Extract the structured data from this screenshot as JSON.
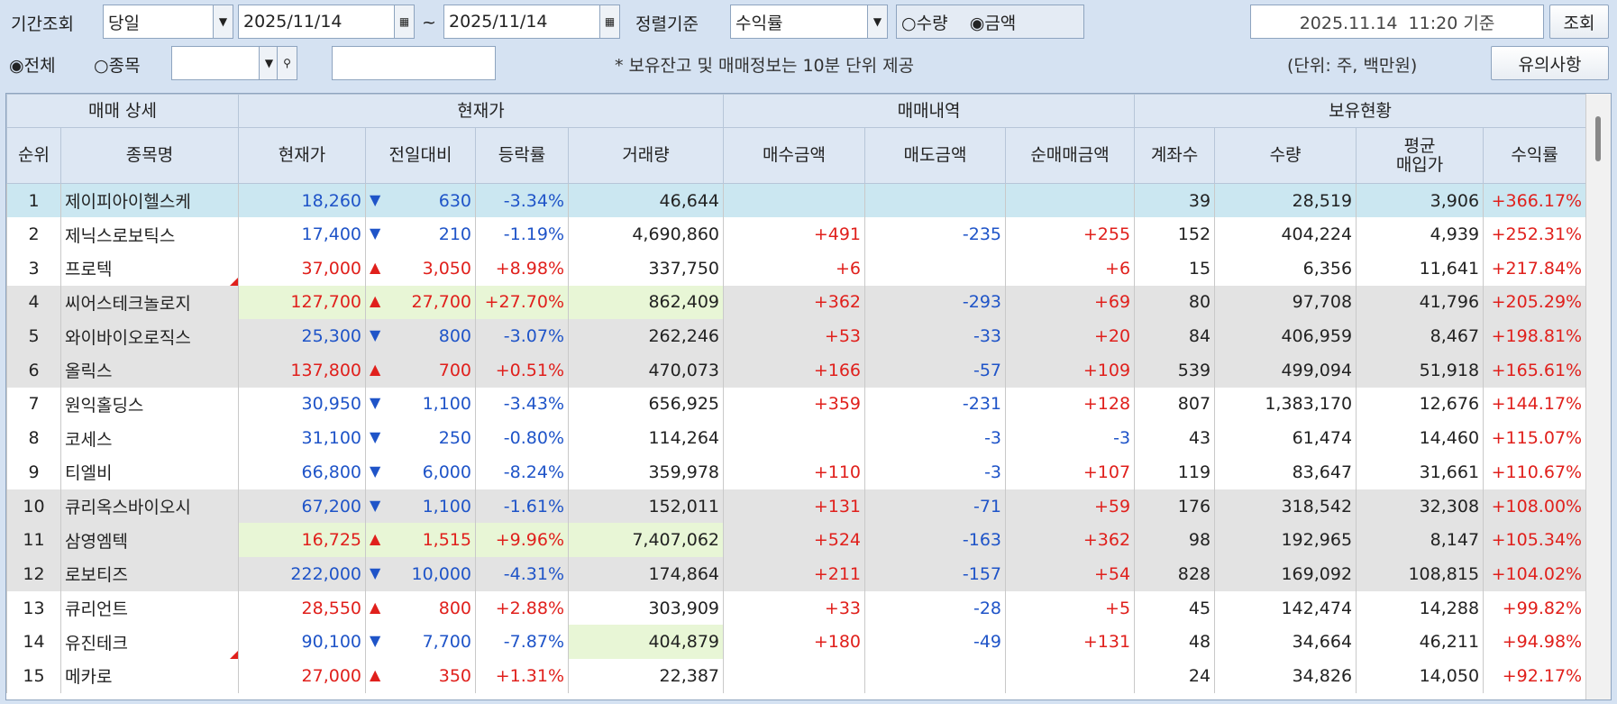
{
  "toolbar": {
    "period_label": "기간조회",
    "period": "당일",
    "date_from": "2025/11/14",
    "tilde": "~",
    "date_to": "2025/11/14",
    "sort_label": "정렬기준",
    "sort": "수익률",
    "radio_qty": "수량",
    "radio_amount": "금액",
    "timestamp": "2025.11.14  11:20 기준",
    "query_button": "조회",
    "radio_all": "전체",
    "radio_stock": "종목",
    "note": "* 보유잔고 및 매매정보는 10분 단위 제공",
    "unit": "(단위: 주, 백만원)",
    "notice_button": "유의사항"
  },
  "table": {
    "groups": [
      "매매 상세",
      "현재가",
      "매매내역",
      "보유현황"
    ],
    "columns": [
      "순위",
      "종목명",
      "현재가",
      "전일대비",
      "등락률",
      "거래량",
      "매수금액",
      "매도금액",
      "순매매금액",
      "계좌수",
      "수량",
      "평균\n매입가",
      "수익률"
    ],
    "rows": [
      [
        1,
        "제이피아이헬스케",
        "18,260",
        "630",
        "-3.34%",
        "46,644",
        null,
        null,
        null,
        "39",
        "28,519",
        "3,906",
        "+366.17%"
      ],
      [
        2,
        "제닉스로보틱스",
        "17,400",
        "210",
        "-1.19%",
        "4,690,860",
        "+491",
        "-235",
        "+255",
        "152",
        "404,224",
        "4,939",
        "+252.31%"
      ],
      [
        3,
        "프로텍",
        "37,000",
        "3,050",
        "+8.98%",
        "337,750",
        "+6",
        null,
        "+6",
        "15",
        "6,356",
        "11,641",
        "+217.84%"
      ],
      [
        4,
        "씨어스테크놀로지",
        "127,700",
        "27,700",
        "+27.70%",
        "862,409",
        "+362",
        "-293",
        "+69",
        "80",
        "97,708",
        "41,796",
        "+205.29%"
      ],
      [
        5,
        "와이바이오로직스",
        "25,300",
        "800",
        "-3.07%",
        "262,246",
        "+53",
        "-33",
        "+20",
        "84",
        "406,959",
        "8,467",
        "+198.81%"
      ],
      [
        6,
        "올릭스",
        "137,800",
        "700",
        "+0.51%",
        "470,073",
        "+166",
        "-57",
        "+109",
        "539",
        "499,094",
        "51,918",
        "+165.61%"
      ],
      [
        7,
        "원익홀딩스",
        "30,950",
        "1,100",
        "-3.43%",
        "656,925",
        "+359",
        "-231",
        "+128",
        "807",
        "1,383,170",
        "12,676",
        "+144.17%"
      ],
      [
        8,
        "코세스",
        "31,100",
        "250",
        "-0.80%",
        "114,264",
        null,
        "-3",
        "-3",
        "43",
        "61,474",
        "14,460",
        "+115.07%"
      ],
      [
        9,
        "티엘비",
        "66,800",
        "6,000",
        "-8.24%",
        "359,978",
        "+110",
        "-3",
        "+107",
        "119",
        "83,647",
        "31,661",
        "+110.67%"
      ],
      [
        10,
        "큐리옥스바이오시",
        "67,200",
        "1,100",
        "-1.61%",
        "152,011",
        "+131",
        "-71",
        "+59",
        "176",
        "318,542",
        "32,308",
        "+108.00%"
      ],
      [
        11,
        "삼영엠텍",
        "16,725",
        "1,515",
        "+9.96%",
        "7,407,062",
        "+524",
        "-163",
        "+362",
        "98",
        "192,965",
        "8,147",
        "+105.34%"
      ],
      [
        12,
        "로보티즈",
        "222,000",
        "10,000",
        "-4.31%",
        "174,864",
        "+211",
        "-157",
        "+54",
        "828",
        "169,092",
        "108,815",
        "+104.02%"
      ],
      [
        13,
        "큐리언트",
        "28,550",
        "800",
        "+2.88%",
        "303,909",
        "+33",
        "-28",
        "+5",
        "45",
        "142,474",
        "14,288",
        "+99.82%"
      ],
      [
        14,
        "유진테크",
        "90,100",
        "7,700",
        "-7.87%",
        "404,879",
        "+180",
        "-49",
        "+131",
        "48",
        "34,664",
        "46,211",
        "+94.98%"
      ],
      [
        15,
        "메카로",
        "27,000",
        "350",
        "+1.31%",
        "22,387",
        null,
        null,
        null,
        "24",
        "34,826",
        "14,050",
        "+92.17%"
      ]
    ]
  }
}
